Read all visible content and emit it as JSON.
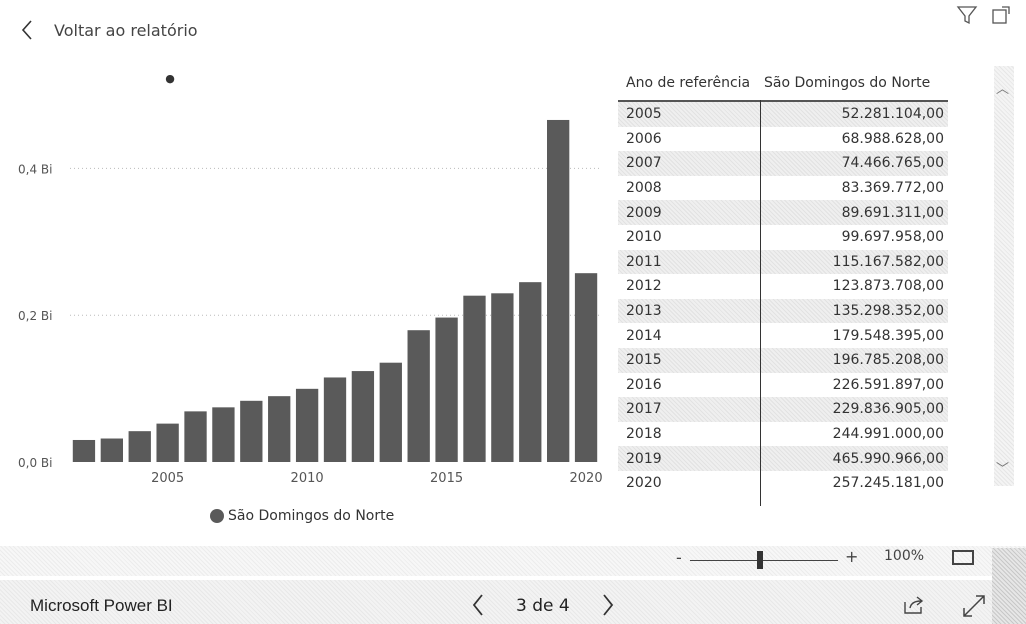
{
  "header": {
    "back_label": "Voltar ao relatório"
  },
  "chart_data": {
    "type": "bar",
    "categories": [
      "2002",
      "2003",
      "2004",
      "2005",
      "2006",
      "2007",
      "2008",
      "2009",
      "2010",
      "2011",
      "2012",
      "2013",
      "2014",
      "2015",
      "2016",
      "2017",
      "2018",
      "2019",
      "2020"
    ],
    "series": [
      {
        "name": "São Domingos do Norte",
        "values": [
          0.03,
          0.032,
          0.042,
          0.052281104,
          0.068988628,
          0.074466765,
          0.083369772,
          0.089691311,
          0.099697958,
          0.115167582,
          0.123873708,
          0.135298352,
          0.179548395,
          0.196785208,
          0.226591897,
          0.229836905,
          0.244991,
          0.465990966,
          0.257245181
        ]
      }
    ],
    "y_ticks": [
      "0,0 Bi",
      "0,2 Bi",
      "0,4 Bi"
    ],
    "x_ticks": [
      "2005",
      "2010",
      "2015",
      "2020"
    ],
    "ylim": [
      0,
      0.5
    ],
    "grid": true,
    "bar_color": "#5a5a5a",
    "legend_position": "bottom"
  },
  "table": {
    "headers": [
      "Ano de referência",
      "São Domingos do Norte"
    ],
    "rows": [
      [
        "2005",
        "52.281.104,00"
      ],
      [
        "2006",
        "68.988.628,00"
      ],
      [
        "2007",
        "74.466.765,00"
      ],
      [
        "2008",
        "83.369.772,00"
      ],
      [
        "2009",
        "89.691.311,00"
      ],
      [
        "2010",
        "99.697.958,00"
      ],
      [
        "2011",
        "115.167.582,00"
      ],
      [
        "2012",
        "123.873.708,00"
      ],
      [
        "2013",
        "135.298.352,00"
      ],
      [
        "2014",
        "179.548.395,00"
      ],
      [
        "2015",
        "196.785.208,00"
      ],
      [
        "2016",
        "226.591.897,00"
      ],
      [
        "2017",
        "229.836.905,00"
      ],
      [
        "2018",
        "244.991.000,00"
      ],
      [
        "2019",
        "465.990.966,00"
      ],
      [
        "2020",
        "257.245.181,00"
      ]
    ]
  },
  "zoom": {
    "minus": "-",
    "plus": "+",
    "level": "100%",
    "slider_fraction": 0.47
  },
  "footer": {
    "brand": "Microsoft Power BI",
    "page_indicator": "3 de 4"
  },
  "icons": {
    "back": "chevron-left-icon",
    "filter": "filter-icon",
    "focus": "focus-mode-icon",
    "fit": "fit-to-page-icon",
    "share": "share-icon",
    "expand": "expand-icon"
  }
}
